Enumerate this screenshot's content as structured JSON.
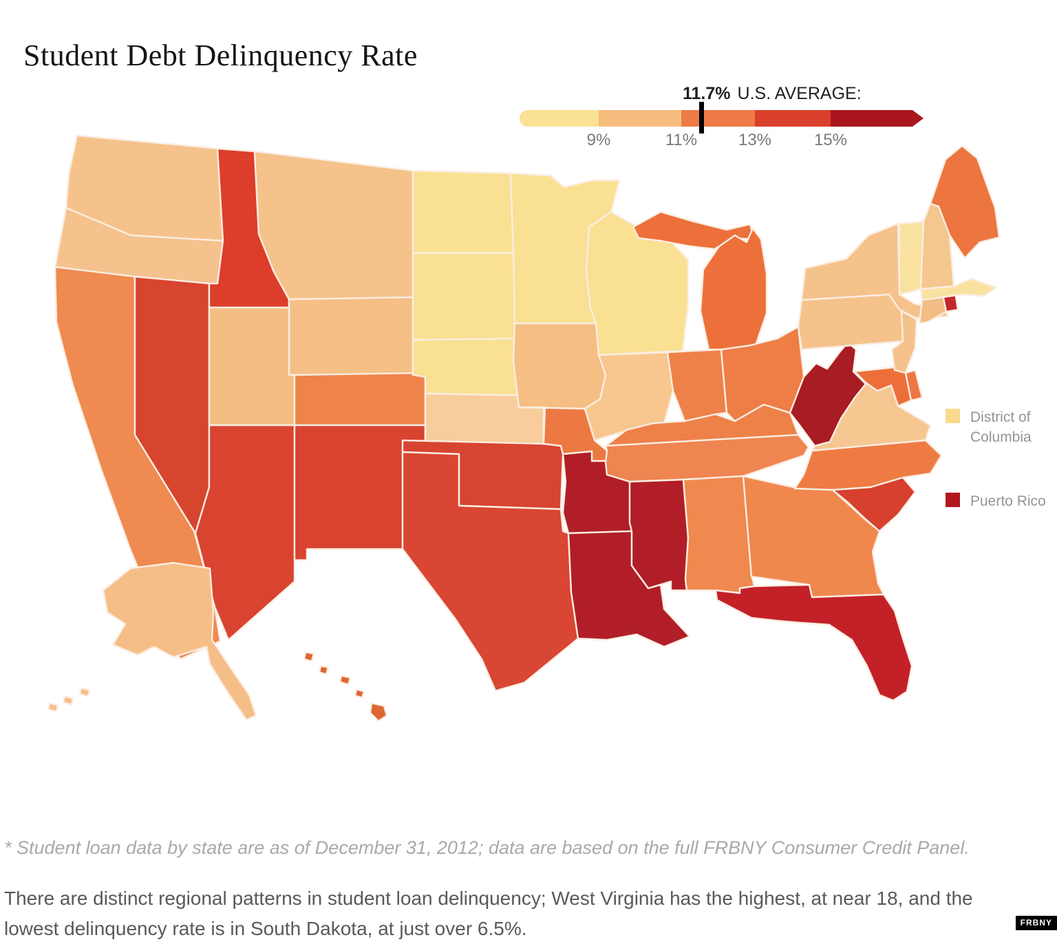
{
  "title": "Student Debt Delinquency Rate",
  "legend_scale": {
    "average_value": "11.7%",
    "average_label": "U.S. AVERAGE:",
    "ticks": [
      "9%",
      "11%",
      "13%",
      "15%"
    ],
    "segment_colors": [
      "#FAE193",
      "#F7BD7E",
      "#EE7B46",
      "#D93F2B",
      "#AA161D"
    ],
    "marker_color": "#000000"
  },
  "legend_items": [
    {
      "id": "dc",
      "label": "District of Columbia",
      "color": "#F8DA8D"
    },
    {
      "id": "pr",
      "label": "Puerto Rico",
      "color": "#B2171F"
    }
  ],
  "map": {
    "border_color": "#FBEDE2",
    "states": [
      {
        "id": "WA",
        "name": "Washington",
        "color": "#F6C28B"
      },
      {
        "id": "OR",
        "name": "Oregon",
        "color": "#F5C28E"
      },
      {
        "id": "CA",
        "name": "California",
        "color": "#EF8A50"
      },
      {
        "id": "NV",
        "name": "Nevada",
        "color": "#D8452F"
      },
      {
        "id": "ID",
        "name": "Idaho",
        "color": "#DC3E2B"
      },
      {
        "id": "MT",
        "name": "Montana",
        "color": "#F5C28B"
      },
      {
        "id": "WY",
        "name": "Wyoming",
        "color": "#F5BF86"
      },
      {
        "id": "UT",
        "name": "Utah",
        "color": "#F4BE83"
      },
      {
        "id": "CO",
        "name": "Colorado",
        "color": "#EE8449"
      },
      {
        "id": "AZ",
        "name": "Arizona",
        "color": "#D84430"
      },
      {
        "id": "NM",
        "name": "New Mexico",
        "color": "#D84430"
      },
      {
        "id": "ND",
        "name": "North Dakota",
        "color": "#FAE093"
      },
      {
        "id": "SD",
        "name": "South Dakota",
        "color": "#FAE093"
      },
      {
        "id": "NE",
        "name": "Nebraska",
        "color": "#FAE093"
      },
      {
        "id": "KS",
        "name": "Kansas",
        "color": "#F8CD9C"
      },
      {
        "id": "OK",
        "name": "Oklahoma",
        "color": "#D64531"
      },
      {
        "id": "TX",
        "name": "Texas",
        "color": "#D94633"
      },
      {
        "id": "MN",
        "name": "Minnesota",
        "color": "#FAE093"
      },
      {
        "id": "IA",
        "name": "Iowa",
        "color": "#F5BE83"
      },
      {
        "id": "MO",
        "name": "Missouri",
        "color": "#ED7942"
      },
      {
        "id": "AR",
        "name": "Arkansas",
        "color": "#B11E27"
      },
      {
        "id": "LA",
        "name": "Louisiana",
        "color": "#B11E27"
      },
      {
        "id": "WI",
        "name": "Wisconsin",
        "color": "#FAE093"
      },
      {
        "id": "IL",
        "name": "Illinois",
        "color": "#F8C78F"
      },
      {
        "id": "MS",
        "name": "Mississippi",
        "color": "#B11E27"
      },
      {
        "id": "MI",
        "name": "Michigan",
        "color": "#ED703B"
      },
      {
        "id": "IN",
        "name": "Indiana",
        "color": "#EE8148"
      },
      {
        "id": "OH",
        "name": "Ohio",
        "color": "#EE7D46"
      },
      {
        "id": "KY",
        "name": "Kentucky",
        "color": "#EE8148"
      },
      {
        "id": "TN",
        "name": "Tennessee",
        "color": "#EF8551"
      },
      {
        "id": "AL",
        "name": "Alabama",
        "color": "#F0894F"
      },
      {
        "id": "GA",
        "name": "Georgia",
        "color": "#F0884E"
      },
      {
        "id": "FL",
        "name": "Florida",
        "color": "#C32127"
      },
      {
        "id": "SC",
        "name": "South Carolina",
        "color": "#D7402E"
      },
      {
        "id": "NC",
        "name": "North Carolina",
        "color": "#EE7B43"
      },
      {
        "id": "VA",
        "name": "Virginia",
        "color": "#F7C792"
      },
      {
        "id": "WV",
        "name": "West Virginia",
        "color": "#A81C23"
      },
      {
        "id": "MD",
        "name": "Maryland",
        "color": "#EC6F3A"
      },
      {
        "id": "DE",
        "name": "Delaware",
        "color": "#ED7742"
      },
      {
        "id": "PA",
        "name": "Pennsylvania",
        "color": "#F6C28B"
      },
      {
        "id": "NY",
        "name": "New York",
        "color": "#F6C28B"
      },
      {
        "id": "NJ",
        "name": "New Jersey",
        "color": "#F5C28C"
      },
      {
        "id": "CT",
        "name": "Connecticut",
        "color": "#F3BD85"
      },
      {
        "id": "RI",
        "name": "Rhode Island",
        "color": "#C2262D"
      },
      {
        "id": "MA",
        "name": "Massachusetts",
        "color": "#F9E2A0"
      },
      {
        "id": "VT",
        "name": "Vermont",
        "color": "#F9E2A0"
      },
      {
        "id": "NH",
        "name": "New Hampshire",
        "color": "#F4C78E"
      },
      {
        "id": "ME",
        "name": "Maine",
        "color": "#ED7540"
      },
      {
        "id": "AK",
        "name": "Alaska",
        "color": "#F6BE87"
      },
      {
        "id": "HI",
        "name": "Hawaii",
        "color": "#DC6733"
      }
    ]
  },
  "footnote": "* Student loan data by state are as of December 31, 2012; data are based on the full FRBNY Consumer Credit Panel.",
  "body_text": "There are distinct regional patterns in student loan delinquency; West Virginia has the highest, at near 18, and the lowest delinquency rate is in South Dakota, at just over 6.5%.",
  "attribution": "FRBNY"
}
